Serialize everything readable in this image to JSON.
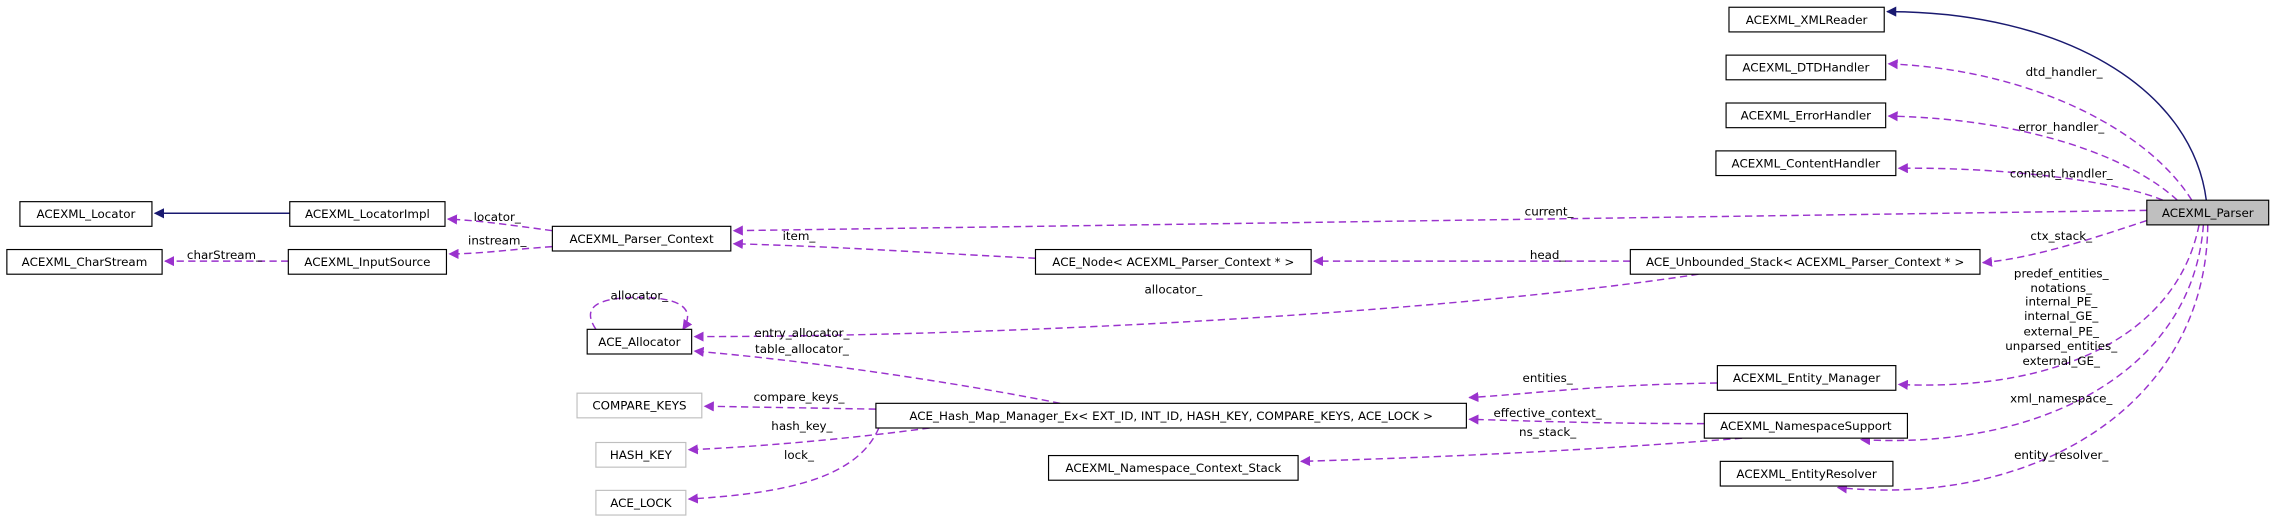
{
  "nodes": [
    {
      "label": "ACEXML_XMLReader"
    },
    {
      "label": "ACEXML_DTDHandler"
    },
    {
      "label": "ACEXML_ErrorHandler"
    },
    {
      "label": "ACEXML_ContentHandler"
    },
    {
      "label": "ACEXML_Parser"
    },
    {
      "label": "ACEXML_Locator"
    },
    {
      "label": "ACEXML_LocatorImpl"
    },
    {
      "label": "ACEXML_Parser_Context"
    },
    {
      "label": "ACEXML_CharStream"
    },
    {
      "label": "ACEXML_InputSource"
    },
    {
      "label": "ACE_Node< ACEXML_Parser_Context * >"
    },
    {
      "label": "ACE_Unbounded_Stack< ACEXML_Parser_Context * >"
    },
    {
      "label": "ACE_Allocator"
    },
    {
      "label": "ACEXML_Entity_Manager"
    },
    {
      "label": "COMPARE_KEYS"
    },
    {
      "label": "ACE_Hash_Map_Manager_Ex< EXT_ID, INT_ID, HASH_KEY, COMPARE_KEYS, ACE_LOCK >"
    },
    {
      "label": "ACEXML_NamespaceSupport"
    },
    {
      "label": "HASH_KEY"
    },
    {
      "label": "ACEXML_Namespace_Context_Stack"
    },
    {
      "label": "ACEXML_EntityResolver"
    },
    {
      "label": "ACE_LOCK"
    }
  ],
  "edges": [
    {
      "labels": []
    },
    {
      "labels": [
        "dtd_handler_"
      ]
    },
    {
      "labels": [
        "error_handler_"
      ]
    },
    {
      "labels": [
        "content_handler_"
      ]
    },
    {
      "labels": [
        "current_"
      ]
    },
    {
      "labels": [
        "ctx_stack_"
      ]
    },
    {
      "labels": [
        "predef_entities_",
        "notations_",
        "internal_PE_",
        "internal_GE_",
        "external_PE_",
        "unparsed_entities_",
        "external_GE_"
      ]
    },
    {
      "labels": [
        "xml_namespace_"
      ]
    },
    {
      "labels": [
        "entity_resolver_"
      ]
    },
    {
      "labels": []
    },
    {
      "labels": [
        "locator_"
      ]
    },
    {
      "labels": [
        "instream_"
      ]
    },
    {
      "labels": [
        "charStream_"
      ]
    },
    {
      "labels": [
        "item_"
      ]
    },
    {
      "labels": [
        "head_"
      ]
    },
    {
      "labels": [
        "allocator_"
      ]
    },
    {
      "labels": [
        "allocator_"
      ]
    },
    {
      "labels": [
        "entry_allocator_",
        "table_allocator_"
      ]
    },
    {
      "labels": [
        "compare_keys_"
      ]
    },
    {
      "labels": [
        "hash_key_"
      ]
    },
    {
      "labels": [
        "lock_"
      ]
    },
    {
      "labels": [
        "entities_"
      ]
    },
    {
      "labels": [
        "effective_context_"
      ]
    },
    {
      "labels": [
        "ns_stack_"
      ]
    }
  ]
}
